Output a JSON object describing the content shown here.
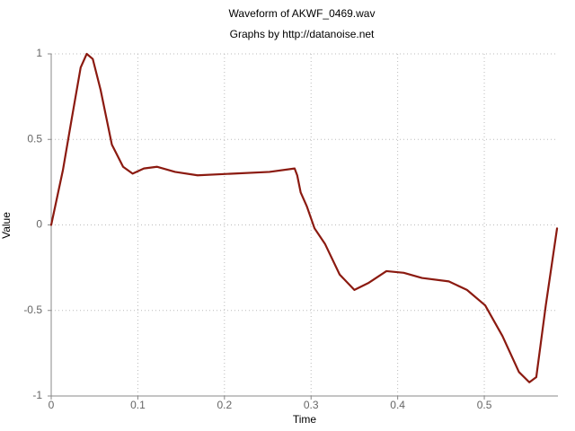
{
  "chart_data": {
    "type": "line",
    "title": "Waveform of AKWF_0469.wav",
    "subtitle": "Graphs by http://datanoise.net",
    "x_label": "Time",
    "y_label": "Value",
    "xlim": [
      0,
      0.585
    ],
    "ylim": [
      -1,
      1
    ],
    "xticks": [
      0,
      0.1,
      0.2,
      0.3,
      0.4,
      0.5
    ],
    "yticks": [
      -1,
      -0.5,
      0,
      0.5,
      1
    ],
    "grid": true,
    "series": [
      {
        "color": "#8b1a10",
        "x": [
          0,
          0.0135,
          0.024,
          0.034,
          0.041,
          0.048,
          0.057,
          0.07,
          0.083,
          0.094,
          0.107,
          0.122,
          0.143,
          0.169,
          0.21,
          0.252,
          0.281,
          0.284,
          0.288,
          0.295,
          0.304,
          0.316,
          0.333,
          0.35,
          0.366,
          0.387,
          0.407,
          0.428,
          0.459,
          0.48,
          0.501,
          0.521,
          0.54,
          0.552,
          0.56,
          0.571,
          0.584
        ],
        "values": [
          0,
          0.32,
          0.63,
          0.92,
          1.0,
          0.97,
          0.79,
          0.47,
          0.34,
          0.3,
          0.33,
          0.34,
          0.31,
          0.29,
          0.3,
          0.31,
          0.33,
          0.29,
          0.19,
          0.11,
          -0.02,
          -0.11,
          -0.29,
          -0.38,
          -0.34,
          -0.27,
          -0.28,
          -0.31,
          -0.33,
          -0.38,
          -0.47,
          -0.65,
          -0.86,
          -0.92,
          -0.89,
          -0.47,
          -0.02
        ]
      }
    ]
  }
}
